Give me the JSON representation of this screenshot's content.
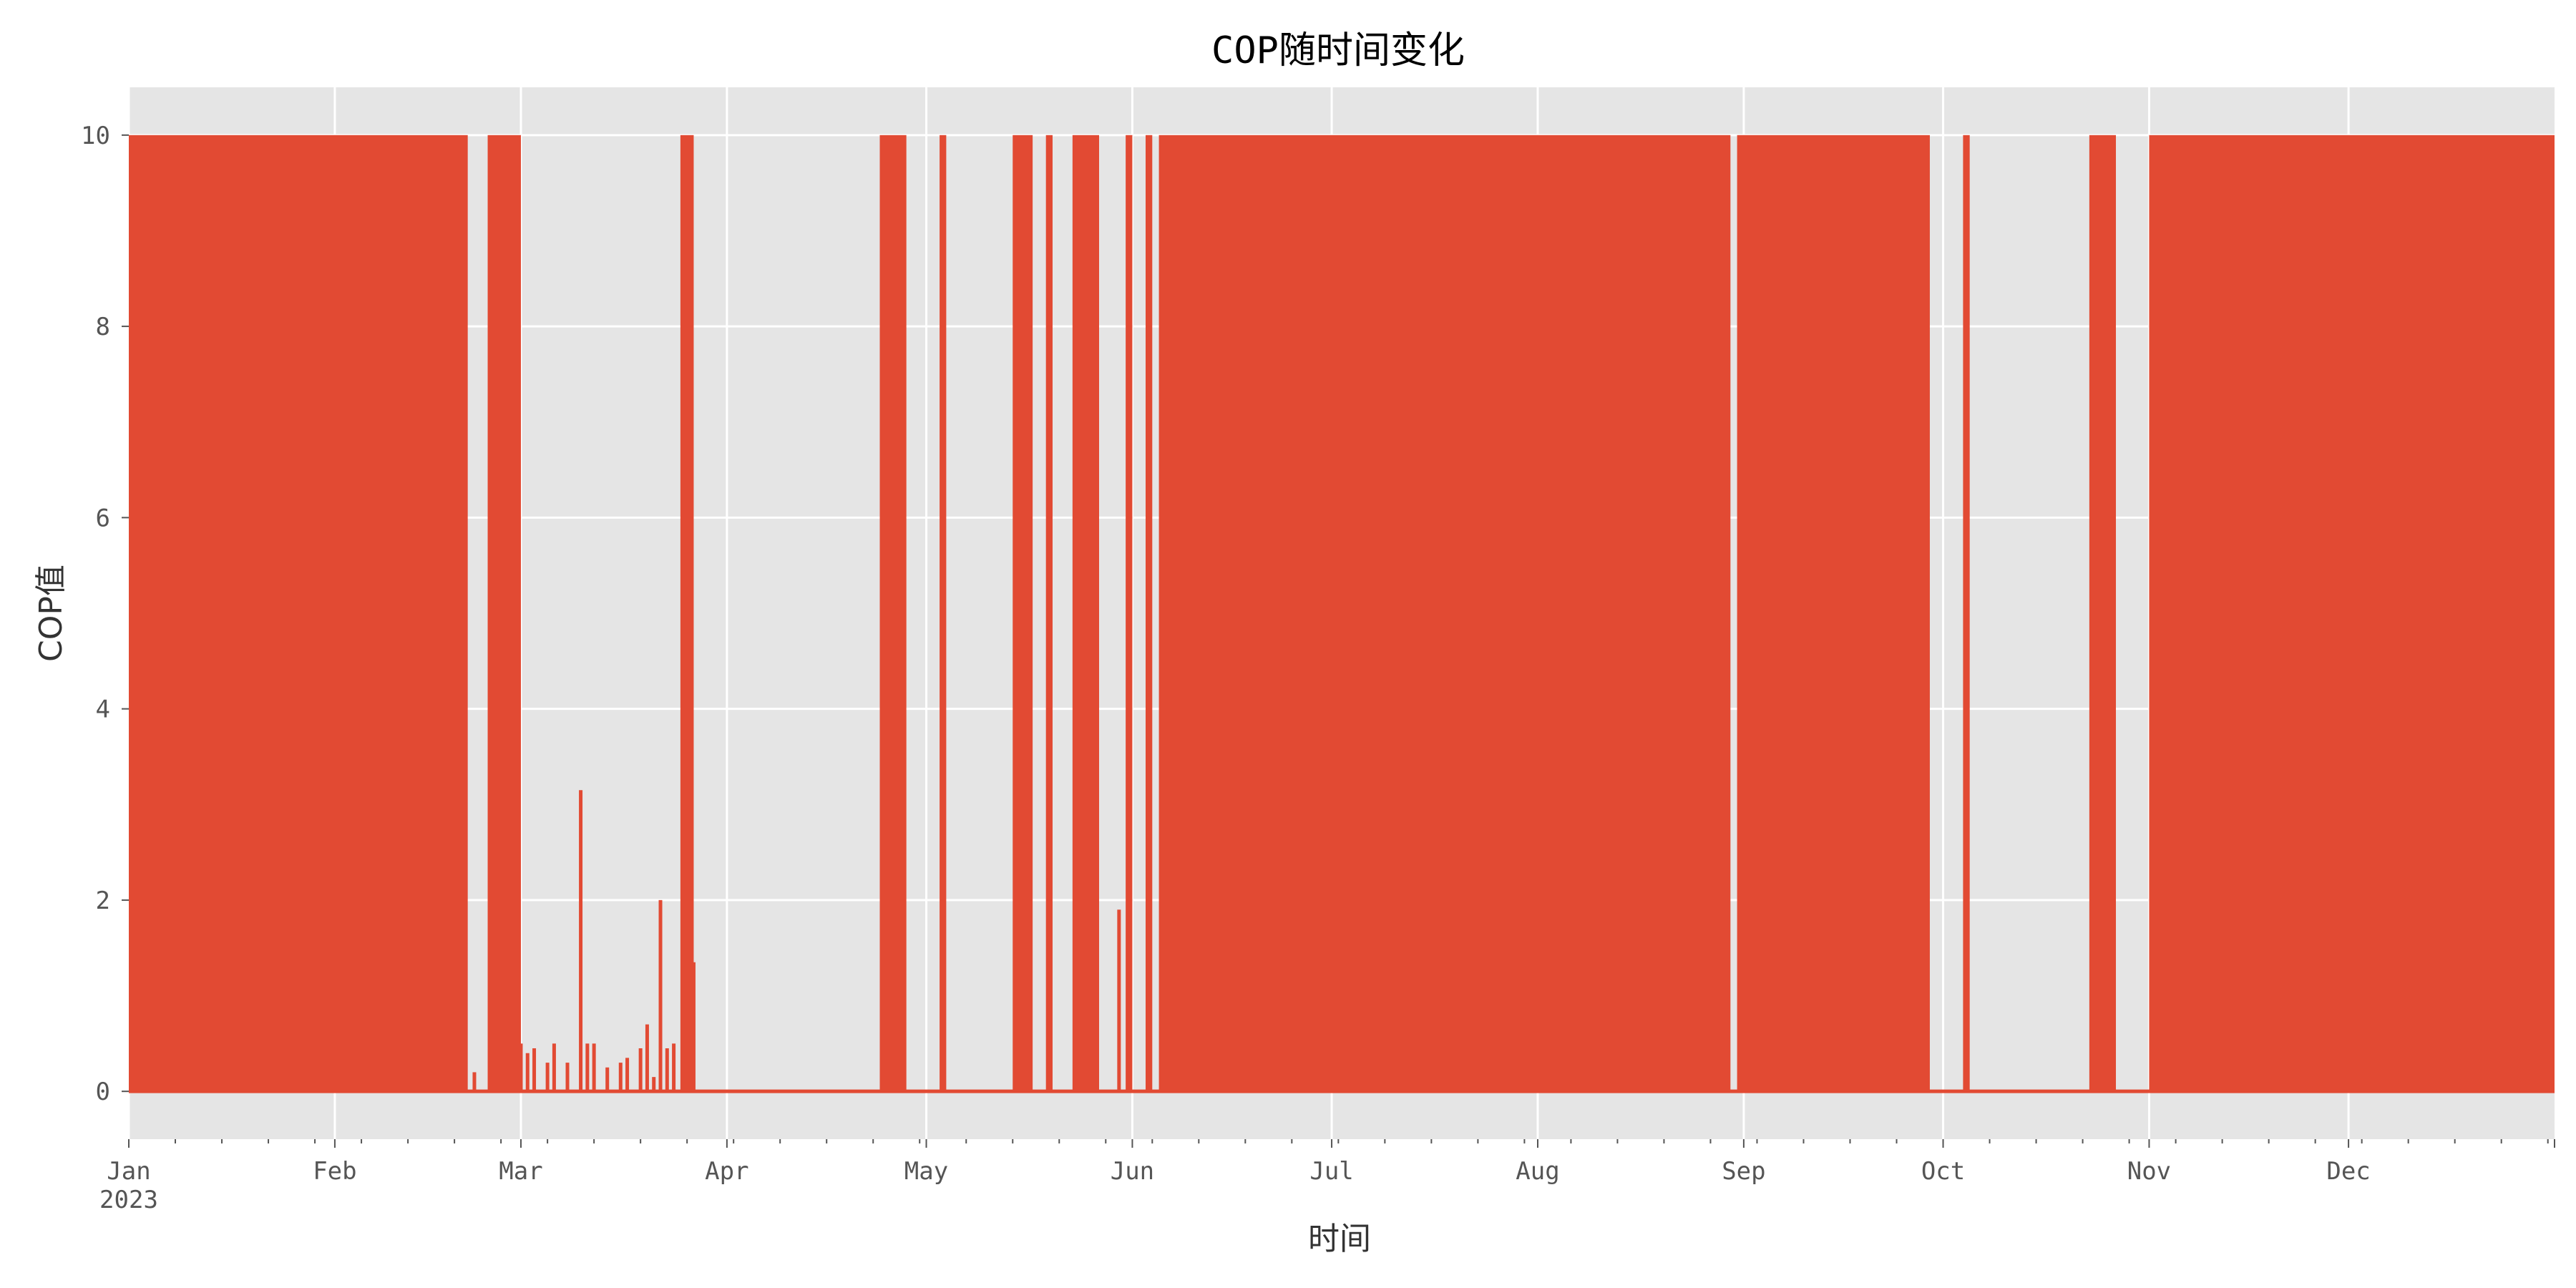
{
  "chart_data": {
    "type": "area",
    "title": "COP随时间变化",
    "xlabel": "时间",
    "ylabel": "COP值",
    "x_axis": {
      "type": "date",
      "range": [
        "2023-01-01",
        "2023-12-31"
      ],
      "ticks": [
        {
          "date": "2023-01-01",
          "label": "Jan",
          "sublabel": "2023"
        },
        {
          "date": "2023-02-01",
          "label": "Feb"
        },
        {
          "date": "2023-03-01",
          "label": "Mar"
        },
        {
          "date": "2023-04-01",
          "label": "Apr"
        },
        {
          "date": "2023-05-01",
          "label": "May"
        },
        {
          "date": "2023-06-01",
          "label": "Jun"
        },
        {
          "date": "2023-07-01",
          "label": "Jul"
        },
        {
          "date": "2023-08-01",
          "label": "Aug"
        },
        {
          "date": "2023-09-01",
          "label": "Sep"
        },
        {
          "date": "2023-10-01",
          "label": "Oct"
        },
        {
          "date": "2023-11-01",
          "label": "Nov"
        },
        {
          "date": "2023-12-01",
          "label": "Dec"
        }
      ]
    },
    "y_axis": {
      "range": [
        -0.5,
        10.5
      ],
      "ticks": [
        0,
        2,
        4,
        6,
        8,
        10
      ]
    },
    "grid": true,
    "legend": "none",
    "series": [
      {
        "color": "#E24A33",
        "description_of_shape": "dense oscillation between 0 and 10 during high-activity periods; near 0 otherwise",
        "high_oscillation_periods": [
          {
            "start": "2023-01-01",
            "end": "2023-02-20",
            "low": 0,
            "high": 10
          },
          {
            "start": "2023-02-24",
            "end": "2023-02-28",
            "low": 0,
            "high": 10
          },
          {
            "start": "2023-03-25",
            "end": "2023-03-26",
            "low": 0,
            "high": 10
          },
          {
            "start": "2023-04-24",
            "end": "2023-04-27",
            "low": 0,
            "high": 10
          },
          {
            "start": "2023-05-03",
            "end": "2023-05-03",
            "low": 0,
            "high": 10
          },
          {
            "start": "2023-05-14",
            "end": "2023-05-16",
            "low": 0,
            "high": 10
          },
          {
            "start": "2023-05-19",
            "end": "2023-05-19",
            "low": 0,
            "high": 10
          },
          {
            "start": "2023-05-23",
            "end": "2023-05-26",
            "low": 0,
            "high": 10
          },
          {
            "start": "2023-05-31",
            "end": "2023-05-31",
            "low": 0,
            "high": 10
          },
          {
            "start": "2023-06-03",
            "end": "2023-06-03",
            "low": 0,
            "high": 10
          },
          {
            "start": "2023-06-05",
            "end": "2023-08-29",
            "low": 0,
            "high": 10
          },
          {
            "start": "2023-08-31",
            "end": "2023-09-28",
            "low": 0,
            "high": 10
          },
          {
            "start": "2023-10-04",
            "end": "2023-10-04",
            "low": 0,
            "high": 10
          },
          {
            "start": "2023-10-23",
            "end": "2023-10-26",
            "low": 0,
            "high": 10
          },
          {
            "start": "2023-11-01",
            "end": "2023-12-31",
            "low": 0,
            "high": 10
          }
        ],
        "low_level_points": [
          {
            "x": "2023-02-20",
            "y": 0.25
          },
          {
            "x": "2023-02-22",
            "y": 0.2
          },
          {
            "x": "2023-03-01",
            "y": 0.5
          },
          {
            "x": "2023-03-02",
            "y": 0.4
          },
          {
            "x": "2023-03-03",
            "y": 0.45
          },
          {
            "x": "2023-03-05",
            "y": 0.3
          },
          {
            "x": "2023-03-06",
            "y": 0.5
          },
          {
            "x": "2023-03-08",
            "y": 0.3
          },
          {
            "x": "2023-03-10",
            "y": 3.15
          },
          {
            "x": "2023-03-11",
            "y": 0.5
          },
          {
            "x": "2023-03-12",
            "y": 0.5
          },
          {
            "x": "2023-03-14",
            "y": 0.25
          },
          {
            "x": "2023-03-16",
            "y": 0.3
          },
          {
            "x": "2023-03-17",
            "y": 0.35
          },
          {
            "x": "2023-03-19",
            "y": 0.45
          },
          {
            "x": "2023-03-20",
            "y": 0.7
          },
          {
            "x": "2023-03-21",
            "y": 0.15
          },
          {
            "x": "2023-03-22",
            "y": 2.0
          },
          {
            "x": "2023-03-23",
            "y": 0.45
          },
          {
            "x": "2023-03-24",
            "y": 0.5
          },
          {
            "x": "2023-03-27",
            "y": 1.35
          },
          {
            "x": "2023-05-30",
            "y": 1.9
          }
        ]
      }
    ]
  }
}
